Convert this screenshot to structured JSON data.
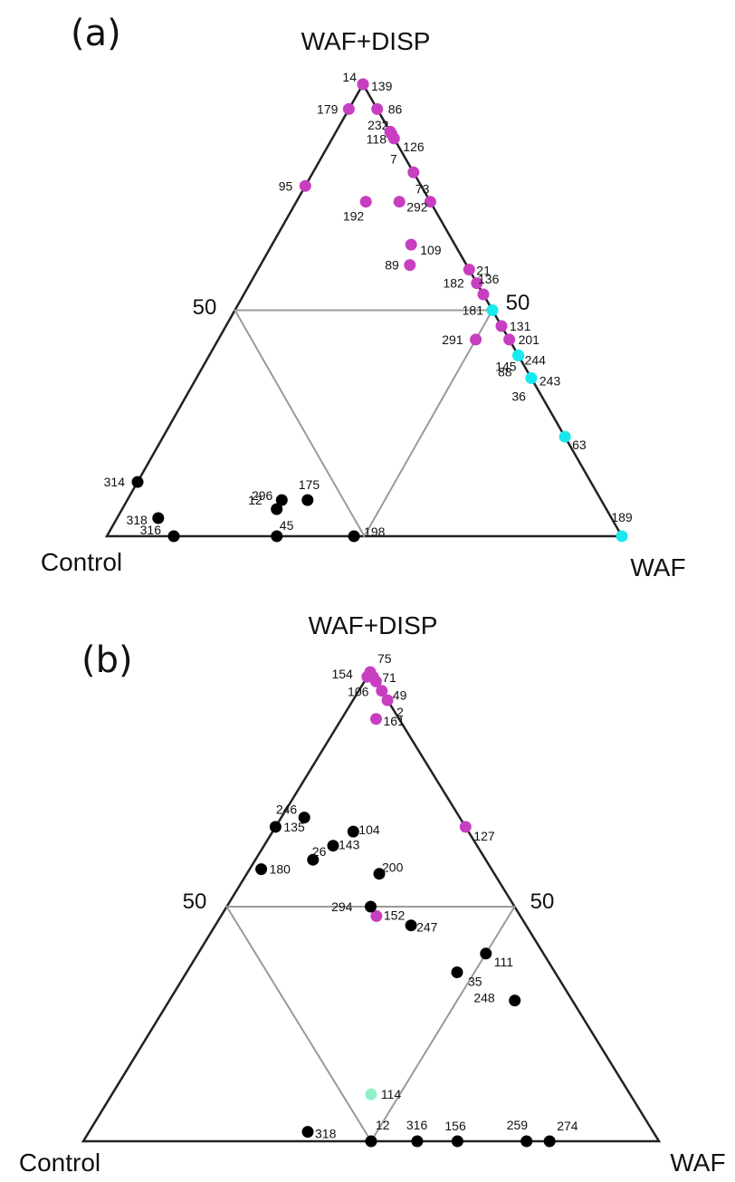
{
  "colors": {
    "magenta": "#c83ec0",
    "cyan": "#19e8ee",
    "black": "#000000",
    "mint": "#8ff0c8",
    "outer": "#222222",
    "inner": "#9a9a9a"
  },
  "chart_data": [
    {
      "type": "scatter",
      "subtype": "ternary",
      "panel_label": "(a)",
      "vertices": {
        "top": "WAF+DISP",
        "left": "Control",
        "right": "WAF"
      },
      "midline_label": "50",
      "points": [
        {
          "label": "14",
          "c": 0.0,
          "w": 0.0,
          "d": 1.0,
          "color": "magenta"
        },
        {
          "label": "139",
          "c": 0.0,
          "w": 0.0,
          "d": 1.0,
          "color": "magenta"
        },
        {
          "label": "179",
          "c": 0.055,
          "w": 0.0,
          "d": 0.945,
          "color": "magenta"
        },
        {
          "label": "86",
          "c": 0.0,
          "w": 0.055,
          "d": 0.945,
          "color": "magenta"
        },
        {
          "label": "232",
          "c": 0.0,
          "w": 0.11,
          "d": 0.89,
          "color": "magenta"
        },
        {
          "label": "118",
          "c": 0.0,
          "w": 0.105,
          "d": 0.895,
          "color": "magenta"
        },
        {
          "label": "126",
          "c": 0.0,
          "w": 0.12,
          "d": 0.88,
          "color": "magenta"
        },
        {
          "label": "73",
          "c": 0.0,
          "w": 0.26,
          "d": 0.74,
          "color": "magenta"
        },
        {
          "label": "95",
          "c": 0.225,
          "w": 0.0,
          "d": 0.775,
          "color": "magenta"
        },
        {
          "label": "7",
          "c": 0.0,
          "w": 0.195,
          "d": 0.805,
          "color": "magenta"
        },
        {
          "label": "292",
          "c": 0.06,
          "w": 0.2,
          "d": 0.74,
          "color": "magenta"
        },
        {
          "label": "192",
          "c": 0.125,
          "w": 0.135,
          "d": 0.74,
          "color": "magenta"
        },
        {
          "label": "21",
          "c": 0.0,
          "w": 0.41,
          "d": 0.59,
          "color": "magenta"
        },
        {
          "label": "109",
          "c": 0.085,
          "w": 0.27,
          "d": 0.645,
          "color": "magenta"
        },
        {
          "label": "89",
          "c": 0.11,
          "w": 0.29,
          "d": 0.6,
          "color": "magenta"
        },
        {
          "label": "182",
          "c": 0.0,
          "w": 0.44,
          "d": 0.56,
          "color": "magenta"
        },
        {
          "label": "136",
          "c": 0.0,
          "w": 0.465,
          "d": 0.535,
          "color": "magenta"
        },
        {
          "label": "181",
          "c": 0.0,
          "w": 0.5,
          "d": 0.5,
          "color": "cyan"
        },
        {
          "label": "131",
          "c": 0.0,
          "w": 0.535,
          "d": 0.465,
          "color": "magenta"
        },
        {
          "label": "291",
          "c": 0.065,
          "w": 0.5,
          "d": 0.435,
          "color": "magenta"
        },
        {
          "label": "201",
          "c": 0.0,
          "w": 0.565,
          "d": 0.435,
          "color": "magenta"
        },
        {
          "label": "88",
          "c": 0.0,
          "w": 0.6,
          "d": 0.4,
          "color": "cyan"
        },
        {
          "label": "145",
          "c": 0.0,
          "w": 0.6,
          "d": 0.4,
          "color": "cyan"
        },
        {
          "label": "244",
          "c": 0.0,
          "w": 0.6,
          "d": 0.4,
          "color": "cyan"
        },
        {
          "label": "36",
          "c": 0.0,
          "w": 0.65,
          "d": 0.35,
          "color": "cyan"
        },
        {
          "label": "243",
          "c": 0.0,
          "w": 0.65,
          "d": 0.35,
          "color": "cyan"
        },
        {
          "label": "63",
          "c": 0.0,
          "w": 0.78,
          "d": 0.22,
          "color": "cyan"
        },
        {
          "label": "189",
          "c": 0.0,
          "w": 1.0,
          "d": 0.0,
          "color": "cyan"
        },
        {
          "label": "314",
          "c": 0.88,
          "w": 0.0,
          "d": 0.12,
          "color": "black"
        },
        {
          "label": "296",
          "c": 0.62,
          "w": 0.3,
          "d": 0.08,
          "color": "black"
        },
        {
          "label": "175",
          "c": 0.57,
          "w": 0.35,
          "d": 0.08,
          "color": "black"
        },
        {
          "label": "318",
          "c": 0.88,
          "w": 0.08,
          "d": 0.04,
          "color": "black"
        },
        {
          "label": "316",
          "c": 0.87,
          "w": 0.13,
          "d": 0.0,
          "color": "black"
        },
        {
          "label": "12",
          "c": 0.64,
          "w": 0.3,
          "d": 0.06,
          "color": "black"
        },
        {
          "label": "45",
          "c": 0.67,
          "w": 0.33,
          "d": 0.0,
          "color": "black"
        },
        {
          "label": "198",
          "c": 0.52,
          "w": 0.48,
          "d": 0.0,
          "color": "black"
        }
      ]
    },
    {
      "type": "scatter",
      "subtype": "ternary",
      "panel_label": "(b)",
      "vertices": {
        "top": "WAF+DISP",
        "left": "Control",
        "right": "WAF"
      },
      "midline_label": "50",
      "points": [
        {
          "label": "75",
          "c": 0.0,
          "w": 0.0,
          "d": 1.0,
          "color": "magenta"
        },
        {
          "label": "154",
          "c": 0.01,
          "w": 0.0,
          "d": 0.99,
          "color": "magenta"
        },
        {
          "label": "71",
          "c": 0.0,
          "w": 0.01,
          "d": 0.99,
          "color": "magenta"
        },
        {
          "label": "106",
          "c": 0.0,
          "w": 0.02,
          "d": 0.98,
          "color": "magenta"
        },
        {
          "label": "49",
          "c": 0.0,
          "w": 0.04,
          "d": 0.96,
          "color": "magenta"
        },
        {
          "label": "2",
          "c": 0.0,
          "w": 0.06,
          "d": 0.94,
          "color": "magenta"
        },
        {
          "label": "161",
          "c": 0.04,
          "w": 0.06,
          "d": 0.9,
          "color": "magenta"
        },
        {
          "label": "127",
          "c": 0.0,
          "w": 0.33,
          "d": 0.67,
          "color": "magenta"
        },
        {
          "label": "152",
          "c": 0.25,
          "w": 0.27,
          "d": 0.48,
          "color": "magenta"
        },
        {
          "label": "246",
          "c": 0.27,
          "w": 0.04,
          "d": 0.69,
          "color": "black"
        },
        {
          "label": "135",
          "c": 0.33,
          "w": 0.0,
          "d": 0.67,
          "color": "black"
        },
        {
          "label": "104",
          "c": 0.2,
          "w": 0.14,
          "d": 0.66,
          "color": "black"
        },
        {
          "label": "143",
          "c": 0.25,
          "w": 0.12,
          "d": 0.63,
          "color": "black"
        },
        {
          "label": "26",
          "c": 0.3,
          "w": 0.1,
          "d": 0.6,
          "color": "black"
        },
        {
          "label": "180",
          "c": 0.4,
          "w": 0.02,
          "d": 0.58,
          "color": "black"
        },
        {
          "label": "200",
          "c": 0.2,
          "w": 0.23,
          "d": 0.57,
          "color": "black"
        },
        {
          "label": "294",
          "c": 0.25,
          "w": 0.25,
          "d": 0.5,
          "color": "black"
        },
        {
          "label": "247",
          "c": 0.2,
          "w": 0.34,
          "d": 0.46,
          "color": "black"
        },
        {
          "label": "111",
          "c": 0.1,
          "w": 0.5,
          "d": 0.4,
          "color": "black"
        },
        {
          "label": "35",
          "c": 0.17,
          "w": 0.47,
          "d": 0.36,
          "color": "black"
        },
        {
          "label": "248",
          "c": 0.1,
          "w": 0.6,
          "d": 0.3,
          "color": "black"
        },
        {
          "label": "114",
          "c": 0.45,
          "w": 0.45,
          "d": 0.1,
          "color": "mint"
        },
        {
          "label": "318",
          "c": 0.6,
          "w": 0.38,
          "d": 0.02,
          "color": "black"
        },
        {
          "label": "12",
          "c": 0.5,
          "w": 0.5,
          "d": 0.0,
          "color": "black"
        },
        {
          "label": "316",
          "c": 0.42,
          "w": 0.58,
          "d": 0.0,
          "color": "black"
        },
        {
          "label": "156",
          "c": 0.35,
          "w": 0.65,
          "d": 0.0,
          "color": "black"
        },
        {
          "label": "259",
          "c": 0.23,
          "w": 0.77,
          "d": 0.0,
          "color": "black"
        },
        {
          "label": "274",
          "c": 0.19,
          "w": 0.81,
          "d": 0.0,
          "color": "black"
        }
      ]
    }
  ]
}
